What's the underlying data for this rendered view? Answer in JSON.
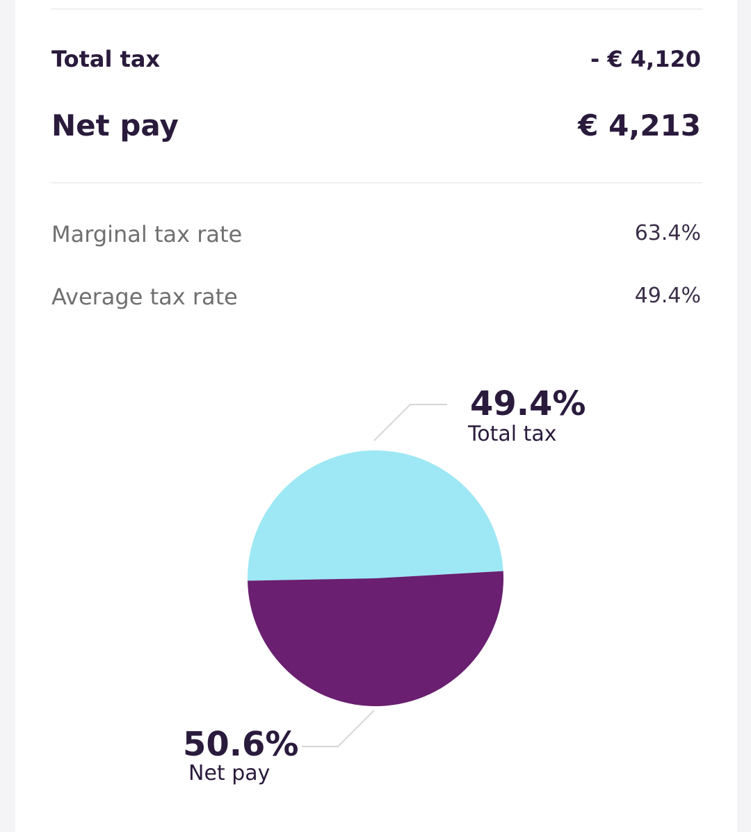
{
  "summary": {
    "total_tax_label": "Total tax",
    "total_tax_value": "- € 4,120",
    "net_pay_label": "Net pay",
    "net_pay_value": "€ 4,213"
  },
  "rates": {
    "marginal_label": "Marginal tax rate",
    "marginal_value": "63.4%",
    "average_label": "Average tax rate",
    "average_value": "49.4%"
  },
  "colors": {
    "total_tax": "#9de8f4",
    "net_pay": "#6a1f70",
    "leader_line": "#d6d6d6"
  },
  "chart_data": {
    "type": "pie",
    "slices": [
      {
        "name": "Total tax",
        "value": 49.4,
        "label": "49.4%",
        "color": "#9de8f4"
      },
      {
        "name": "Net pay",
        "value": 50.6,
        "label": "50.6%",
        "color": "#6a1f70"
      }
    ]
  }
}
